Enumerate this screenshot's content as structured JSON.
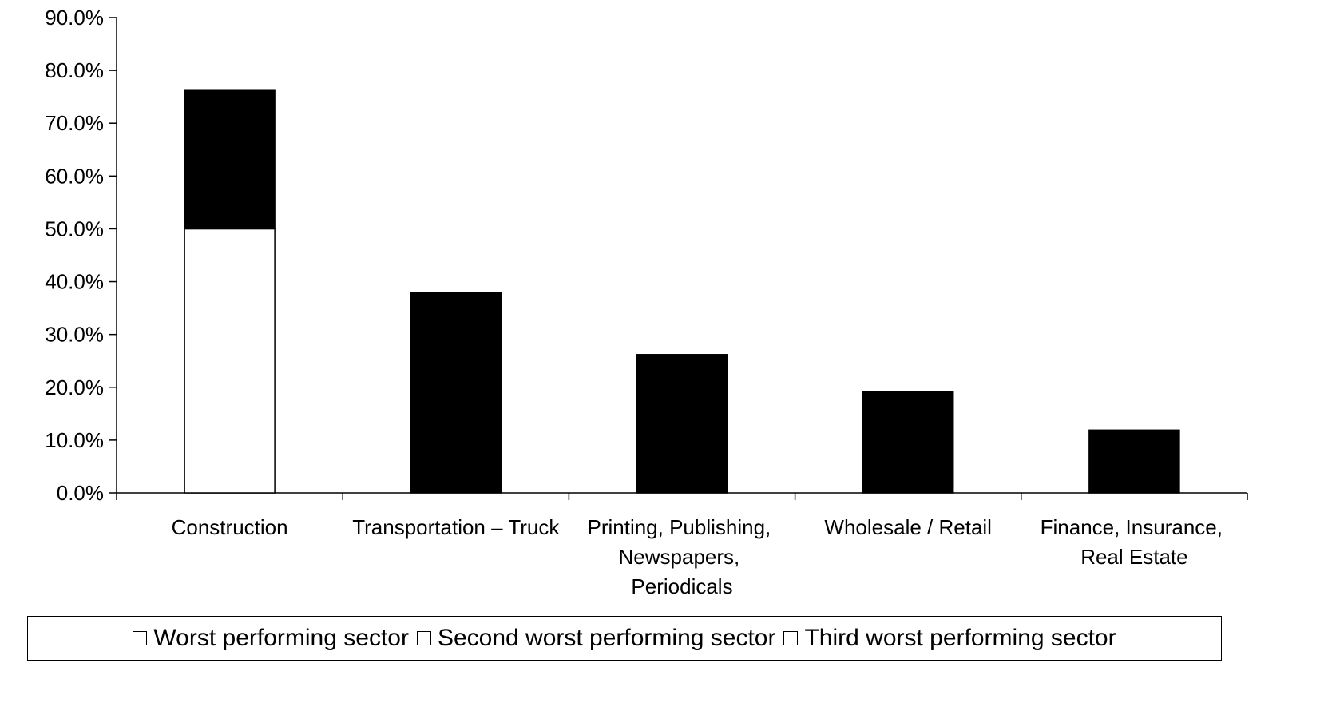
{
  "chart_data": {
    "type": "stacked_bar",
    "categories": [
      "Construction",
      "Transportation – Truck",
      "Printing, Publishing, Newspapers, Periodicals",
      "Wholesale / Retail",
      "Finance, Insurance, Real Estate"
    ],
    "series": [
      {
        "name": "Worst performing sector",
        "color": "#000000",
        "colors": [
          "#ffffff",
          "#000000",
          "#000000",
          "#000000",
          "#000000"
        ],
        "values": [
          50,
          38,
          26.2,
          19.1,
          11.9
        ]
      },
      {
        "name": "Second worst performing sector",
        "color": "#000000",
        "values": [
          26.2,
          null,
          null,
          null,
          null
        ]
      },
      {
        "name": "Third worst performing sector",
        "color": "#000000",
        "values": [
          null,
          null,
          null,
          null,
          null
        ]
      }
    ],
    "ylim": [
      0,
      90
    ],
    "yticks": [
      {
        "value": 0,
        "label": "0.0%"
      },
      {
        "value": 10,
        "label": "10.0%"
      },
      {
        "value": 20,
        "label": "20.0%"
      },
      {
        "value": 30,
        "label": "30.0%"
      },
      {
        "value": 40,
        "label": "40.0%"
      },
      {
        "value": 50,
        "label": "50.0%"
      },
      {
        "value": 60,
        "label": "60.0%"
      },
      {
        "value": 70,
        "label": "70.0%"
      },
      {
        "value": 80,
        "label": "80.0%"
      },
      {
        "value": 90,
        "label": "90.0%"
      }
    ],
    "grid": false
  }
}
